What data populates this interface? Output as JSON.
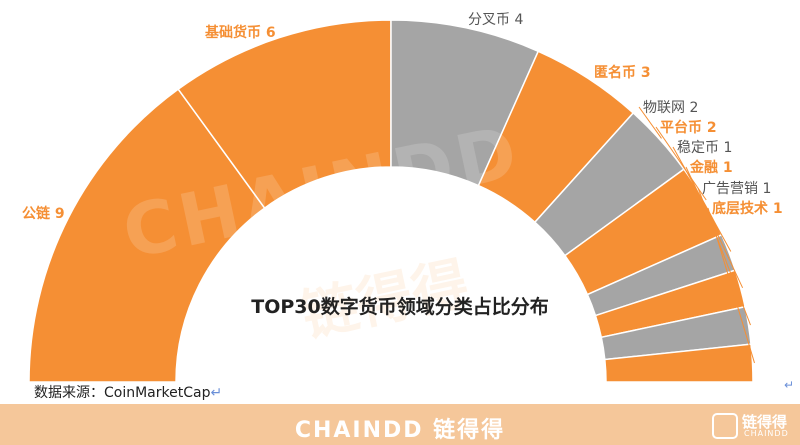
{
  "chart_data": {
    "type": "pie",
    "variant": "half-donut",
    "title": "TOP30数字货币领域分类占比分布",
    "categories": [
      "公链",
      "基础货币",
      "分叉币",
      "匿名币",
      "物联网",
      "平台币",
      "稳定币",
      "金融",
      "广告营销",
      "底层技术"
    ],
    "values": [
      9,
      6,
      4,
      3,
      2,
      2,
      1,
      1,
      1,
      1
    ],
    "labels": [
      "公链 9",
      "基础货币 6",
      "分叉币 4",
      "匿名币 3",
      "物联网 2",
      "平台币 2",
      "稳定币 1",
      "金融 1",
      "广告营销 1",
      "底层技术 1"
    ],
    "slice_colors": [
      "#f58f34",
      "#f58f34",
      "#a5a5a5",
      "#f58f34",
      "#a5a5a5",
      "#f58f34",
      "#a5a5a5",
      "#f58f34",
      "#a5a5a5",
      "#f58f34"
    ],
    "label_colors": [
      "#f58f34",
      "#f58f34",
      "#555555",
      "#f58f34",
      "#555555",
      "#f58f34",
      "#555555",
      "#f58f34",
      "#555555",
      "#f58f34"
    ],
    "total": 30
  },
  "source": "数据来源：CoinMarketCap",
  "footer": {
    "brand": "CHAINDD 链得得",
    "logo_cn": "链得得",
    "logo_en": "CHAINDD"
  },
  "watermark": {
    "en": "CHAINDD",
    "cn": "链得得"
  },
  "colors": {
    "orange": "#f58f34",
    "gray": "#a5a5a5",
    "footer": "#f5c79a"
  }
}
